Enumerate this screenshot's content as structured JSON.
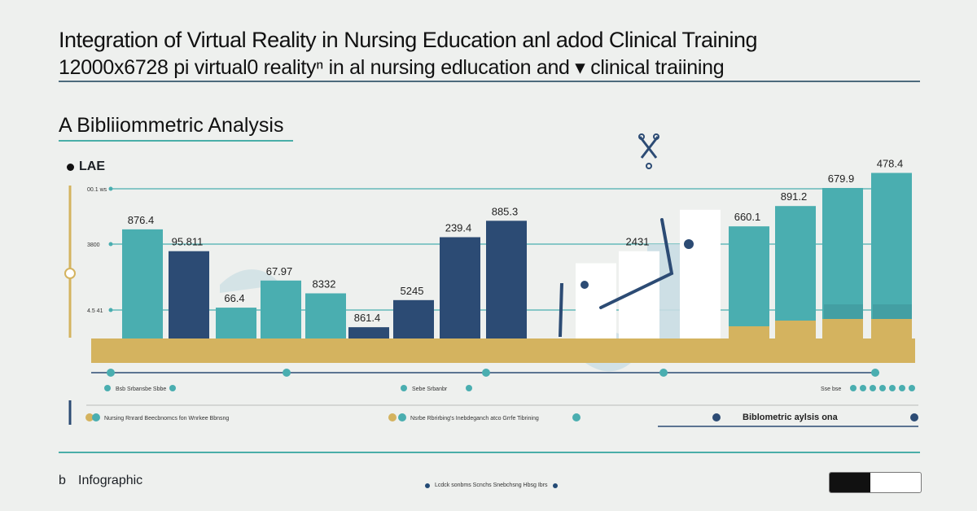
{
  "header": {
    "title": "Integration of Virtual Reality in Nursing Education anl adod Clinical Training",
    "title_line2": "12000x6728 pi virtual0 realityⁿ  in  al nursing edlucation and ▾ clinical traiining",
    "subtitle": "A Bibliiommetric Analysis",
    "legend_label": "LAE"
  },
  "footer": {
    "label_b": "b",
    "label_info": "Infographic",
    "bib_label": "Biblometric aylsis ona"
  },
  "colors": {
    "teal": "#4aaeb0",
    "navy": "#2c4b74",
    "gold": "#d4b35f",
    "white_bar": "#ffffff",
    "pale_blue": "#c9dde3",
    "background": "#eef0ee"
  },
  "icons": [
    "scissors-icon",
    "legend-dot-icon"
  ],
  "chart_data": {
    "type": "bar",
    "title": "A Bibliiommetric Analysis",
    "ylim": [
      0,
      1050
    ],
    "y_ticks": [
      "00.1 ws",
      "3800",
      "4.5 41"
    ],
    "grid": true,
    "bars": [
      {
        "label": "876.4",
        "value": 725,
        "color": "teal"
      },
      {
        "label": "95.811",
        "value": 580,
        "color": "navy"
      },
      {
        "label": "66.4",
        "value": 205,
        "color": "teal"
      },
      {
        "label": "67.97",
        "value": 385,
        "color": "teal"
      },
      {
        "label": "8332",
        "value": 300,
        "color": "teal"
      },
      {
        "label": "861.4",
        "value": 75,
        "color": "navy"
      },
      {
        "label": "5245",
        "value": 255,
        "color": "navy"
      },
      {
        "label": "239.4",
        "value": 673,
        "color": "navy"
      },
      {
        "label": "885.3",
        "value": 782,
        "color": "navy"
      },
      {
        "label": "",
        "value": 500,
        "color": "white"
      },
      {
        "label": "2431",
        "value": 580,
        "color": "white"
      },
      {
        "label": "",
        "value": 855,
        "color": "white"
      },
      {
        "label": "660.1",
        "value": 745,
        "color": "teal"
      },
      {
        "label": "891.2",
        "value": 880,
        "color": "teal"
      },
      {
        "label": "679.9",
        "value": 1000,
        "color": "teal"
      },
      {
        "label": "478.4",
        "value": 1100,
        "color": "teal"
      }
    ],
    "legend_items": [
      "Bsb Srbansbe Sbbe",
      "Sebe Srbanbr",
      "Nursing Rnrard Beecbnomcs fon Wnrkee Bbnsng",
      "Nsrbe Rbrirbing's Inebdeganch atco Grrfe Tibrining"
    ]
  }
}
